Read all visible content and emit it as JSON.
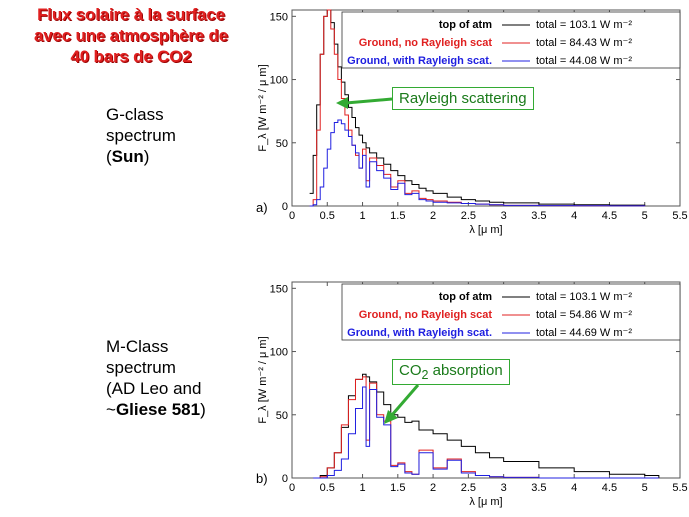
{
  "title": "Flux solaire à la surface\navec une atmosphère de\n40 bars de CO2",
  "side_a": {
    "line1": "G-class",
    "line2": "spectrum",
    "line3_open": "(",
    "line3_bold": "Sun",
    "line3_close": ")"
  },
  "side_b": {
    "line1": "M-Class",
    "line2": "spectrum",
    "line3": "(AD Leo and",
    "line4_pre": "~",
    "line4_bold": "Gliese 581",
    "line4_post": ")"
  },
  "annotation_a": "Rayleigh scattering",
  "annotation_b_pre": "CO",
  "annotation_b_sub": "2",
  "annotation_b_post": " absorption",
  "colors": {
    "top": "#000000",
    "no_rayleigh": "#e02020",
    "with_rayleigh": "#2020e0",
    "arrow": "#33aa33"
  },
  "chart_data": [
    {
      "type": "line",
      "panel_label": "a)",
      "xlabel": "λ [μ m]",
      "ylabel": "F_λ [W m⁻² / μ m]",
      "xlim": [
        0,
        5.5
      ],
      "ylim": [
        0,
        155
      ],
      "xticks": [
        0,
        0.5,
        1,
        1.5,
        2,
        2.5,
        3,
        3.5,
        4,
        4.5,
        5,
        5.5
      ],
      "yticks": [
        0,
        50,
        100,
        150
      ],
      "legend_position": "top-right",
      "series": [
        {
          "name": "top of atm",
          "total_label": "total = 103.1 W m⁻²",
          "color": "#000000",
          "x": [
            0.25,
            0.3,
            0.35,
            0.4,
            0.45,
            0.5,
            0.55,
            0.6,
            0.65,
            0.7,
            0.75,
            0.8,
            0.85,
            0.9,
            0.95,
            1.0,
            1.05,
            1.1,
            1.2,
            1.3,
            1.4,
            1.5,
            1.6,
            1.7,
            1.8,
            1.9,
            2.0,
            2.2,
            2.4,
            2.6,
            2.8,
            3.0,
            3.5,
            4.0,
            4.5,
            5.0
          ],
          "y": [
            10,
            40,
            80,
            120,
            150,
            155,
            145,
            128,
            110,
            98,
            88,
            78,
            70,
            62,
            56,
            50,
            46,
            42,
            38,
            33,
            28,
            24,
            20,
            17,
            14,
            12,
            10,
            7,
            5,
            4,
            3,
            2.5,
            1.5,
            1,
            0.7,
            0.5
          ]
        },
        {
          "name": "Ground, no Rayleigh scat",
          "total_label": "total = 84.43 W m⁻²",
          "color": "#e02020",
          "x": [
            0.25,
            0.3,
            0.35,
            0.4,
            0.45,
            0.5,
            0.55,
            0.6,
            0.65,
            0.7,
            0.75,
            0.8,
            0.85,
            0.9,
            0.95,
            1.0,
            1.05,
            1.1,
            1.2,
            1.3,
            1.4,
            1.5,
            1.6,
            1.7,
            1.8,
            1.9,
            2.0,
            2.2,
            2.4,
            2.6,
            2.8,
            3.0,
            3.5,
            4.0,
            4.5,
            5.0
          ],
          "y": [
            0,
            5,
            60,
            120,
            150,
            155,
            140,
            120,
            100,
            85,
            72,
            60,
            48,
            40,
            30,
            45,
            20,
            38,
            32,
            25,
            15,
            20,
            10,
            12,
            6,
            5,
            4,
            3,
            2,
            1.5,
            1,
            0.5,
            0.3,
            0.2,
            0.1,
            0
          ]
        },
        {
          "name": "Ground, with Rayleigh scat.",
          "total_label": "total = 44.08 W m⁻²",
          "color": "#2020e0",
          "x": [
            0.25,
            0.3,
            0.35,
            0.4,
            0.45,
            0.5,
            0.55,
            0.6,
            0.65,
            0.7,
            0.75,
            0.8,
            0.85,
            0.9,
            0.95,
            1.0,
            1.05,
            1.1,
            1.2,
            1.3,
            1.4,
            1.5,
            1.6,
            1.7,
            1.8,
            1.9,
            2.0,
            2.2,
            2.4,
            2.6,
            2.8,
            3.0,
            3.5,
            4.0,
            4.5,
            5.0
          ],
          "y": [
            0,
            1,
            5,
            15,
            30,
            45,
            58,
            66,
            68,
            65,
            60,
            55,
            48,
            42,
            30,
            40,
            15,
            35,
            28,
            22,
            13,
            18,
            9,
            10,
            5,
            4,
            3,
            2.5,
            2,
            1.5,
            1,
            0.5,
            0.3,
            0.2,
            0.1,
            0
          ]
        }
      ]
    },
    {
      "type": "line",
      "panel_label": "b)",
      "xlabel": "λ [μ m]",
      "ylabel": "F_λ [W m⁻² / μ m]",
      "xlim": [
        0,
        5.5
      ],
      "ylim": [
        0,
        155
      ],
      "xticks": [
        0,
        0.5,
        1,
        1.5,
        2,
        2.5,
        3,
        3.5,
        4,
        4.5,
        5,
        5.5
      ],
      "yticks": [
        0,
        50,
        100,
        150
      ],
      "legend_position": "top-right",
      "series": [
        {
          "name": "top of atm",
          "total_label": "total = 103.1 W m⁻²",
          "color": "#000000",
          "x": [
            0.3,
            0.4,
            0.5,
            0.6,
            0.7,
            0.8,
            0.9,
            1.0,
            1.05,
            1.1,
            1.2,
            1.3,
            1.4,
            1.5,
            1.6,
            1.7,
            1.8,
            2.0,
            2.2,
            2.4,
            2.6,
            2.8,
            3.0,
            3.5,
            4.0,
            4.5,
            5.0,
            5.2
          ],
          "y": [
            0,
            2,
            8,
            20,
            40,
            65,
            78,
            82,
            80,
            76,
            68,
            58,
            50,
            48,
            44,
            45,
            38,
            35,
            30,
            25,
            20,
            16,
            13,
            8,
            5,
            3,
            2,
            0
          ]
        },
        {
          "name": "Ground, no Rayleigh scat",
          "total_label": "total = 54.86 W m⁻²",
          "color": "#e02020",
          "x": [
            0.3,
            0.4,
            0.5,
            0.6,
            0.7,
            0.8,
            0.9,
            1.0,
            1.05,
            1.1,
            1.2,
            1.3,
            1.4,
            1.5,
            1.6,
            1.7,
            1.8,
            2.0,
            2.2,
            2.4,
            2.6,
            2.8,
            3.0,
            3.5,
            4.0,
            4.5,
            5.0,
            5.2
          ],
          "y": [
            0,
            1,
            8,
            20,
            42,
            62,
            78,
            80,
            30,
            75,
            50,
            45,
            10,
            12,
            5,
            3,
            22,
            8,
            15,
            5,
            2,
            1,
            0.5,
            0,
            0,
            0,
            0,
            0
          ]
        },
        {
          "name": "Ground, with Rayleigh scat.",
          "total_label": "total = 44.69 W m⁻²",
          "color": "#2020e0",
          "x": [
            0.3,
            0.4,
            0.5,
            0.6,
            0.7,
            0.8,
            0.9,
            1.0,
            1.05,
            1.1,
            1.2,
            1.3,
            1.4,
            1.5,
            1.6,
            1.7,
            1.8,
            2.0,
            2.2,
            2.4,
            2.6,
            2.8,
            3.0,
            3.5,
            4.0,
            4.5,
            5.0,
            5.2
          ],
          "y": [
            0,
            0,
            2,
            6,
            15,
            35,
            55,
            72,
            25,
            70,
            48,
            42,
            9,
            11,
            4,
            3,
            20,
            7,
            14,
            4,
            2,
            1,
            0.5,
            0,
            0,
            0,
            0,
            0
          ]
        }
      ]
    }
  ]
}
